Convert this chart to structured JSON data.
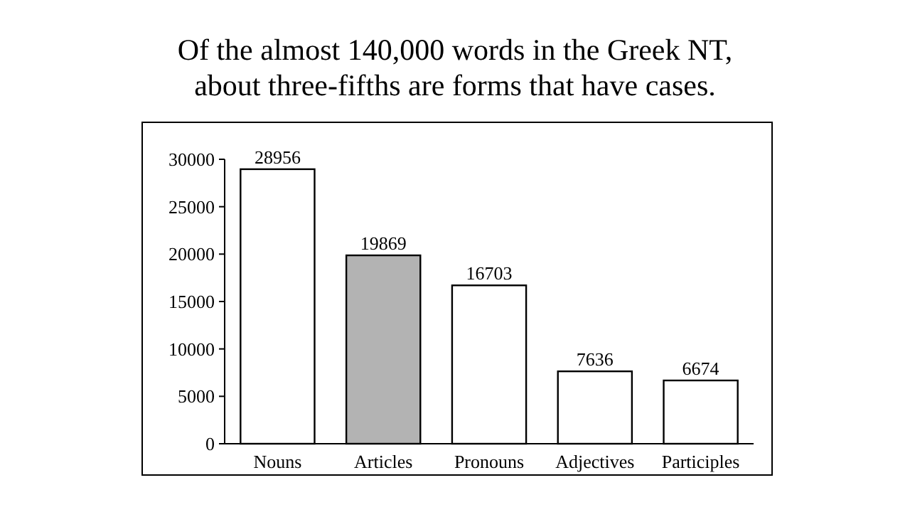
{
  "chart_data": {
    "type": "bar",
    "title": "Of the almost 140,000 words in the Greek NT,\nabout three-fifths are forms that have cases.",
    "categories": [
      "Nouns",
      "Articles",
      "Pronouns",
      "Adjectives",
      "Participles"
    ],
    "values": [
      28956,
      19869,
      16703,
      7636,
      6674
    ],
    "colors": [
      "#ffffff",
      "#b3b3b3",
      "#ffffff",
      "#ffffff",
      "#ffffff"
    ],
    "ylim": [
      0,
      30000
    ],
    "yticks": [
      0,
      5000,
      10000,
      15000,
      20000,
      25000,
      30000
    ],
    "data_labels": true
  }
}
